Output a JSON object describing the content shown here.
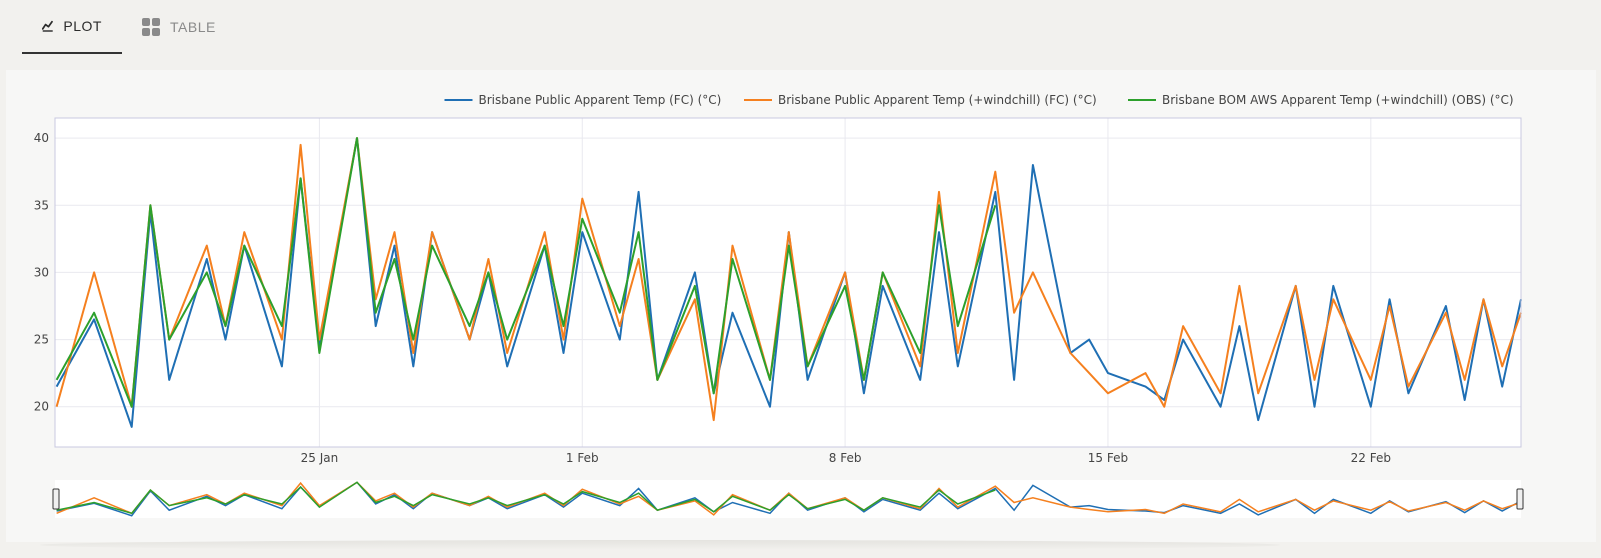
{
  "tabs": [
    {
      "label": "PLOT",
      "icon": "line-chart-icon",
      "active": true
    },
    {
      "label": "TABLE",
      "icon": "table-grid-icon",
      "active": false
    }
  ],
  "colors": {
    "series_fc": "#1f6fb4",
    "series_windchill_fc": "#f5801f",
    "series_obs": "#2ca02c",
    "grid": "#e9e9ef",
    "axis_border": "#c8c8e0"
  },
  "chart_data": {
    "type": "line",
    "x_axis": {
      "type": "date",
      "range": [
        "2026-01-17T23:00",
        "2026-02-26T00:00"
      ],
      "ticks": [
        "25 Jan",
        "1 Feb",
        "8 Feb",
        "15 Feb",
        "22 Feb"
      ]
    },
    "y_axis": {
      "range": [
        17,
        41.5
      ],
      "ticks": [
        "20",
        "25",
        "30",
        "35",
        "40"
      ]
    },
    "grid": true,
    "legend_position": "top-right",
    "range_slider": true,
    "series": [
      {
        "name": "Brisbane Public Apparent Temp (FC) (°C)",
        "x": [
          "2026-01-18",
          "2026-01-19",
          "2026-01-20",
          "2026-01-20T12:00",
          "2026-01-21",
          "2026-01-22",
          "2026-01-22T12:00",
          "2026-01-23",
          "2026-01-24",
          "2026-01-24T12:00",
          "2026-01-25",
          "2026-01-26",
          "2026-01-26T12:00",
          "2026-01-27",
          "2026-01-27T12:00",
          "2026-01-28",
          "2026-01-29",
          "2026-01-29T12:00",
          "2026-01-30",
          "2026-01-31",
          "2026-01-31T12:00",
          "2026-02-01",
          "2026-02-02",
          "2026-02-02T12:00",
          "2026-02-03",
          "2026-02-04",
          "2026-02-04T12:00",
          "2026-02-05",
          "2026-02-06",
          "2026-02-06T12:00",
          "2026-02-07",
          "2026-02-08",
          "2026-02-08T12:00",
          "2026-02-09",
          "2026-02-10",
          "2026-02-10T12:00",
          "2026-02-11",
          "2026-02-12",
          "2026-02-12T12:00",
          "2026-02-13",
          "2026-02-14",
          "2026-02-14T12:00",
          "2026-02-15",
          "2026-02-16",
          "2026-02-16T12:00",
          "2026-02-17",
          "2026-02-18",
          "2026-02-18T12:00",
          "2026-02-19",
          "2026-02-20",
          "2026-02-20T12:00",
          "2026-02-21",
          "2026-02-22",
          "2026-02-22T12:00",
          "2026-02-23",
          "2026-02-24",
          "2026-02-24T12:00",
          "2026-02-25",
          "2026-02-25T12:00",
          "2026-02-26"
        ],
        "y": [
          21.5,
          26.5,
          18.5,
          34.5,
          22,
          31,
          25,
          32,
          23,
          37,
          24.5,
          40,
          26,
          32,
          23,
          33,
          25,
          30,
          23,
          32,
          24,
          33,
          25,
          36,
          22,
          30,
          21,
          27,
          20,
          33,
          22,
          30,
          21,
          29,
          22,
          33,
          23,
          36,
          22,
          38,
          24,
          25,
          22.5,
          21.5,
          20.5,
          25,
          20,
          26,
          19,
          29,
          20,
          29,
          20,
          28,
          21,
          27.5,
          20.5,
          28,
          21.5,
          28
        ]
      },
      {
        "name": "Brisbane Public Apparent Temp (+windchill) (FC) (°C)",
        "x": [
          "2026-01-18",
          "2026-01-19",
          "2026-01-20",
          "2026-01-20T12:00",
          "2026-01-21",
          "2026-01-22",
          "2026-01-22T12:00",
          "2026-01-23",
          "2026-01-24",
          "2026-01-24T12:00",
          "2026-01-25",
          "2026-01-26",
          "2026-01-26T12:00",
          "2026-01-27",
          "2026-01-27T12:00",
          "2026-01-28",
          "2026-01-29",
          "2026-01-29T12:00",
          "2026-01-30",
          "2026-01-31",
          "2026-01-31T12:00",
          "2026-02-01",
          "2026-02-02",
          "2026-02-02T12:00",
          "2026-02-03",
          "2026-02-04",
          "2026-02-04T12:00",
          "2026-02-05",
          "2026-02-06",
          "2026-02-06T12:00",
          "2026-02-07",
          "2026-02-08",
          "2026-02-08T12:00",
          "2026-02-09",
          "2026-02-10",
          "2026-02-10T12:00",
          "2026-02-11",
          "2026-02-12",
          "2026-02-12T12:00",
          "2026-02-13",
          "2026-02-14",
          "2026-02-14T12:00",
          "2026-02-15",
          "2026-02-16",
          "2026-02-16T12:00",
          "2026-02-17",
          "2026-02-18",
          "2026-02-18T12:00",
          "2026-02-19",
          "2026-02-20",
          "2026-02-20T12:00",
          "2026-02-21",
          "2026-02-22",
          "2026-02-22T12:00",
          "2026-02-23",
          "2026-02-24",
          "2026-02-24T12:00",
          "2026-02-25",
          "2026-02-25T12:00",
          "2026-02-26"
        ],
        "y": [
          20,
          30,
          20,
          35,
          25,
          32,
          26,
          33,
          25,
          39.5,
          25,
          40,
          28,
          33,
          24,
          33,
          25,
          31,
          24,
          33,
          25,
          35.5,
          26,
          31,
          22,
          28,
          19,
          32,
          22,
          33,
          23,
          30,
          22,
          30,
          23,
          36,
          24,
          37.5,
          27,
          30,
          24,
          22.5,
          21,
          22.5,
          20,
          26,
          21,
          29,
          21,
          29,
          22,
          28,
          22,
          27.5,
          21.5,
          27,
          22,
          28,
          23,
          27
        ]
      },
      {
        "name": "Brisbane BOM AWS Apparent Temp (+windchill) (OBS) (°C)",
        "x": [
          "2026-01-18",
          "2026-01-19",
          "2026-01-20",
          "2026-01-20T12:00",
          "2026-01-21",
          "2026-01-22",
          "2026-01-22T12:00",
          "2026-01-23",
          "2026-01-24",
          "2026-01-24T12:00",
          "2026-01-25",
          "2026-01-26",
          "2026-01-26T12:00",
          "2026-01-27",
          "2026-01-27T12:00",
          "2026-01-28",
          "2026-01-29",
          "2026-01-29T12:00",
          "2026-01-30",
          "2026-01-31",
          "2026-01-31T12:00",
          "2026-02-01",
          "2026-02-02",
          "2026-02-02T12:00",
          "2026-02-03",
          "2026-02-04",
          "2026-02-04T12:00",
          "2026-02-05",
          "2026-02-06",
          "2026-02-06T12:00",
          "2026-02-07",
          "2026-02-08",
          "2026-02-08T12:00",
          "2026-02-09",
          "2026-02-10",
          "2026-02-10T12:00",
          "2026-02-11",
          "2026-02-12"
        ],
        "y": [
          22,
          27,
          20,
          35,
          25,
          30,
          26,
          32,
          26,
          37,
          24,
          40,
          27,
          31,
          25,
          32,
          26,
          30,
          25,
          32,
          26,
          34,
          27,
          33,
          22,
          29,
          21,
          31,
          22,
          32,
          23,
          29,
          22,
          30,
          24,
          35,
          26,
          35
        ]
      }
    ]
  }
}
